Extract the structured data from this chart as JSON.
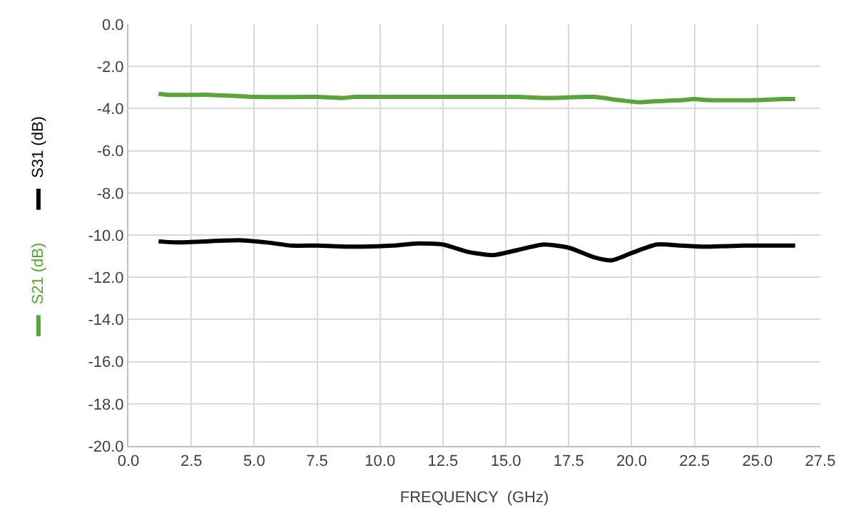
{
  "chart_data": {
    "type": "line",
    "xlabel": "FREQUENCY  (GHz)",
    "xlim": [
      0,
      27.5
    ],
    "xticks": [
      {
        "value": 0,
        "label": "0.0"
      },
      {
        "value": 2.5,
        "label": "2.5"
      },
      {
        "value": 5,
        "label": "5.0"
      },
      {
        "value": 7.5,
        "label": "7.5"
      },
      {
        "value": 10,
        "label": "10.0"
      },
      {
        "value": 12.5,
        "label": "12.5"
      },
      {
        "value": 15,
        "label": "15.0"
      },
      {
        "value": 17.5,
        "label": "17.5"
      },
      {
        "value": 20,
        "label": "20.0"
      },
      {
        "value": 22.5,
        "label": "22.5"
      },
      {
        "value": 25,
        "label": "25.0"
      },
      {
        "value": 27.5,
        "label": "27.5"
      }
    ],
    "ylim": [
      -20,
      0
    ],
    "yticks": [
      {
        "value": 0,
        "label": "0.0"
      },
      {
        "value": -2,
        "label": "-2.0"
      },
      {
        "value": -4,
        "label": "-4.0"
      },
      {
        "value": -6,
        "label": "-6.0"
      },
      {
        "value": -8,
        "label": "-8.0"
      },
      {
        "value": -10,
        "label": "-10.0"
      },
      {
        "value": -12,
        "label": "-12.0"
      },
      {
        "value": -14,
        "label": "-14.0"
      },
      {
        "value": -16,
        "label": "-16.0"
      },
      {
        "value": -18,
        "label": "-18.0"
      },
      {
        "value": -20,
        "label": "-20.0"
      }
    ],
    "grid": true,
    "legend": "left",
    "marker": "none",
    "line_style": "solid",
    "series": [
      {
        "name": "S21 (dB)",
        "color": "#5ba33b",
        "x": [
          1.2,
          1.6,
          3.3,
          5.0,
          7.5,
          8.5,
          9.0,
          12.5,
          15.5,
          16.5,
          18.5,
          19.5,
          20.3,
          21.0,
          22.0,
          22.5,
          23.0,
          25.0,
          26.0,
          26.5
        ],
        "values": [
          -3.3,
          -3.35,
          -3.35,
          -3.45,
          -3.45,
          -3.5,
          -3.45,
          -3.45,
          -3.45,
          -3.5,
          -3.45,
          -3.6,
          -3.7,
          -3.65,
          -3.6,
          -3.55,
          -3.6,
          -3.6,
          -3.55,
          -3.55
        ]
      },
      {
        "name": "S31 (dB)",
        "color": "#000000",
        "x": [
          1.2,
          2.0,
          3.0,
          4.5,
          5.5,
          6.5,
          7.5,
          9.0,
          10.5,
          11.5,
          12.5,
          13.5,
          14.5,
          15.5,
          16.5,
          17.5,
          18.5,
          19.2,
          20.0,
          21.0,
          22.0,
          23.0,
          24.5,
          26.5
        ],
        "values": [
          -10.3,
          -10.35,
          -10.3,
          -10.25,
          -10.35,
          -10.5,
          -10.5,
          -10.55,
          -10.5,
          -10.4,
          -10.45,
          -10.8,
          -10.95,
          -10.7,
          -10.45,
          -10.6,
          -11.05,
          -11.2,
          -10.85,
          -10.45,
          -10.5,
          -10.55,
          -10.5,
          -10.5
        ]
      }
    ]
  }
}
